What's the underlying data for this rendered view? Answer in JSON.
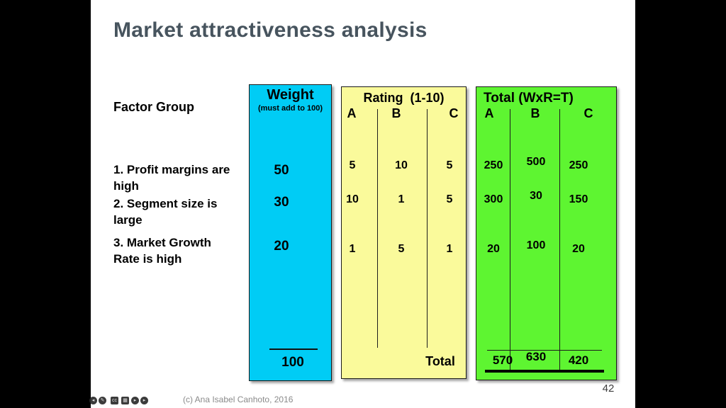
{
  "theme": {
    "letterbox_color": "#000000",
    "slide_background": "#FFFFFF",
    "title_color": "#47545E"
  },
  "slide": {
    "title": "Market attractiveness analysis",
    "page_number": "42",
    "copyright": "(c) Ana Isabel Canhoto, 2016"
  },
  "factor_group": {
    "heading": "Factor Group",
    "items": [
      {
        "line1": "1. Profit margins are",
        "line2": "high"
      },
      {
        "line1": "2. Segment size is",
        "line2": "large"
      },
      {
        "line1": "3. Market Growth",
        "line2": "Rate is high"
      }
    ]
  },
  "weight_box": {
    "title": "Weight",
    "subtitle": "(must add to 100)",
    "values": [
      "50",
      "30",
      "20"
    ],
    "total": "100",
    "color": "#00CCF5"
  },
  "rating_box": {
    "title": "Rating  (1-10)",
    "columns": [
      "A",
      "B",
      "C"
    ],
    "rows": [
      [
        "5",
        "10",
        "5"
      ],
      [
        "10",
        "1",
        "5"
      ],
      [
        "1",
        "5",
        "1"
      ]
    ],
    "total_label": "Total",
    "color": "#FAFA9B"
  },
  "total_box": {
    "title": "Total (WxR=T)",
    "columns": [
      "A",
      "B",
      "C"
    ],
    "rows": [
      [
        "250",
        "500",
        "250"
      ],
      [
        "300",
        "30",
        "150"
      ],
      [
        "20",
        "100",
        "20"
      ]
    ],
    "totals": [
      "570",
      "630",
      "420"
    ],
    "color": "#5EF531"
  },
  "controls": {
    "icons": [
      {
        "name": "previous-slide-icon",
        "glyph": "◂"
      },
      {
        "name": "pen-icon",
        "glyph": "✎"
      },
      {
        "name": "captions-icon",
        "glyph": "cc"
      },
      {
        "name": "thumbnails-icon",
        "glyph": "▦"
      },
      {
        "name": "next-slide-icon",
        "glyph": "▸"
      },
      {
        "name": "play-icon",
        "glyph": "▸"
      }
    ]
  }
}
